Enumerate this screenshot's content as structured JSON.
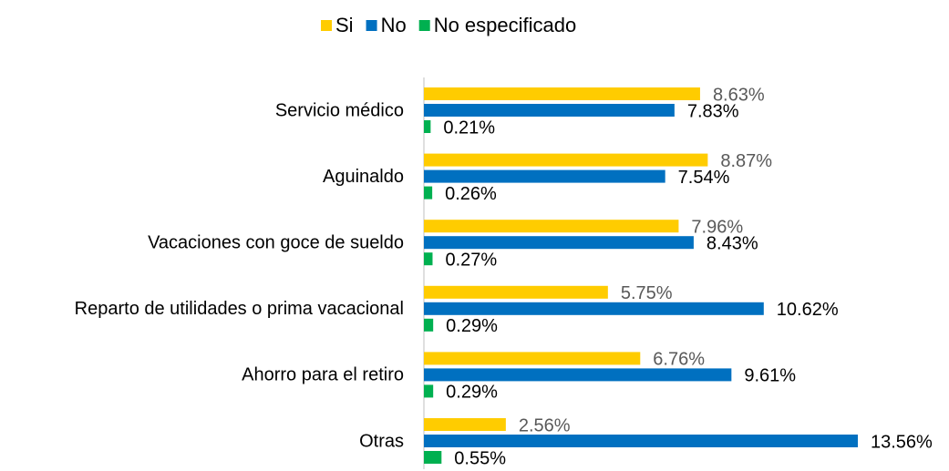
{
  "chart_data": {
    "type": "bar",
    "orientation": "horizontal",
    "categories": [
      "Servicio médico",
      "Aguinaldo",
      "Vacaciones con goce de sueldo",
      "Reparto de utilidades o prima vacacional",
      "Ahorro para el retiro",
      "Otras"
    ],
    "series": [
      {
        "name": "Si",
        "color": "#ffcc00",
        "values": [
          8.63,
          8.87,
          7.96,
          5.75,
          6.76,
          2.56
        ],
        "value_labels": [
          "8.63%",
          "8.87%",
          "7.96%",
          "5.75%",
          "6.76%",
          "2.56%"
        ]
      },
      {
        "name": "No",
        "color": "#0070c0",
        "values": [
          7.83,
          7.54,
          8.43,
          10.62,
          9.61,
          13.56
        ],
        "value_labels": [
          "7.83%",
          "7.54%",
          "8.43%",
          "10.62%",
          "9.61%",
          "13.56%"
        ]
      },
      {
        "name": "No especificado",
        "color": "#00b050",
        "values": [
          0.21,
          0.26,
          0.27,
          0.29,
          0.29,
          0.55
        ],
        "value_labels": [
          "0.21%",
          "0.26%",
          "0.27%",
          "0.29%",
          "0.29%",
          "0.55%"
        ]
      }
    ],
    "legend": "top"
  }
}
